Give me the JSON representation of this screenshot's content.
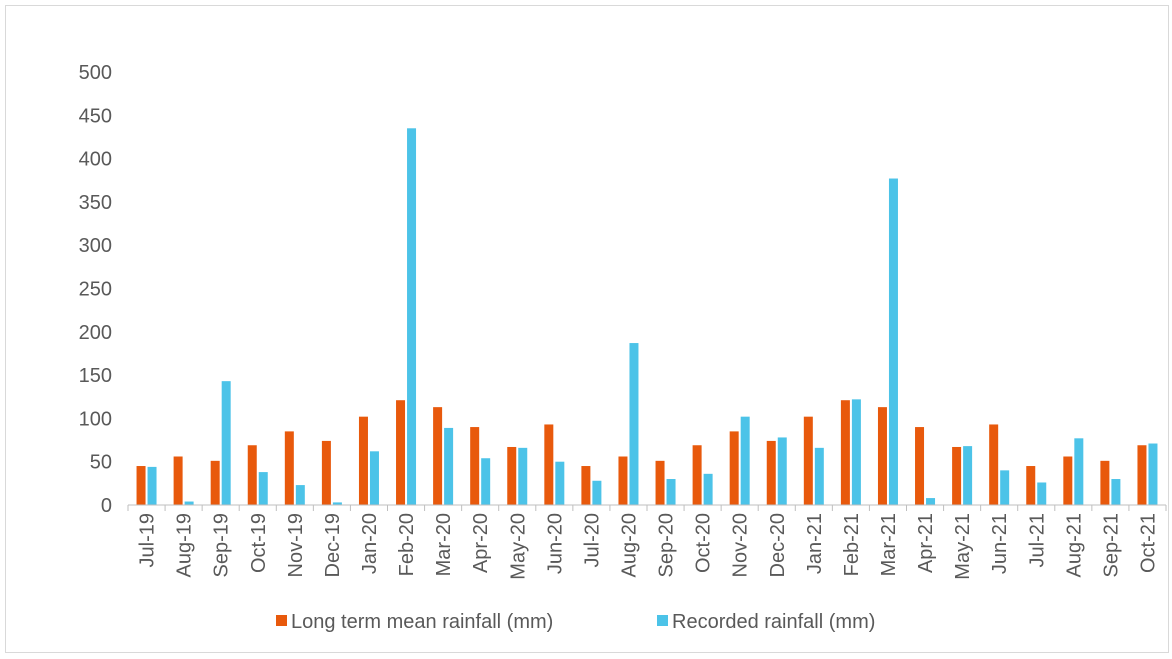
{
  "chart_data": {
    "type": "bar",
    "title": "",
    "xlabel": "",
    "ylabel": "",
    "ylim": [
      0,
      500
    ],
    "yticks": [
      "0",
      "50",
      "100",
      "150",
      "200",
      "250",
      "300",
      "350",
      "400",
      "450",
      "500"
    ],
    "grid": false,
    "legend_position": "bottom",
    "categories": [
      "Jul-19",
      "Aug-19",
      "Sep-19",
      "Oct-19",
      "Nov-19",
      "Dec-19",
      "Jan-20",
      "Feb-20",
      "Mar-20",
      "Apr-20",
      "May-20",
      "Jun-20",
      "Jul-20",
      "Aug-20",
      "Sep-20",
      "Oct-20",
      "Nov-20",
      "Dec-20",
      "Jan-21",
      "Feb-21",
      "Mar-21",
      "Apr-21",
      "May-21",
      "Jun-21",
      "Jul-21",
      "Aug-21",
      "Sep-21",
      "Oct-21"
    ],
    "series": [
      {
        "name": "Long term mean rainfall (mm)",
        "color": "#E8590C",
        "values": [
          45,
          56,
          51,
          69,
          85,
          74,
          102,
          121,
          113,
          90,
          67,
          93,
          45,
          56,
          51,
          69,
          85,
          74,
          102,
          121,
          113,
          90,
          67,
          93,
          45,
          56,
          51,
          69
        ]
      },
      {
        "name": "Recorded rainfall (mm)",
        "color": "#4CC3E8",
        "values": [
          44,
          4,
          143,
          38,
          23,
          3,
          62,
          435,
          89,
          54,
          66,
          50,
          28,
          187,
          30,
          36,
          102,
          78,
          66,
          122,
          377,
          8,
          68,
          40,
          26,
          77,
          30,
          71
        ]
      }
    ]
  }
}
